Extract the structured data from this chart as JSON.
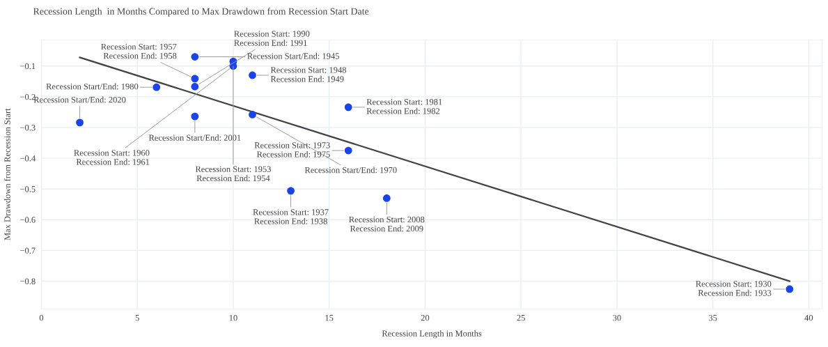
{
  "chart_data": {
    "type": "scatter",
    "title": "Recession Length  in Months Compared to Max Drawdown from Recession Start Date",
    "xlabel": "Recession Length in Months",
    "ylabel": "Max Drawdown from Recession Start",
    "xlim": [
      0,
      40.7
    ],
    "ylim": [
      -0.89,
      -0.015
    ],
    "xticks": [
      0,
      5,
      10,
      15,
      20,
      25,
      30,
      35,
      40
    ],
    "yticks": [
      {
        "value": -0.8,
        "label": "−0.8"
      },
      {
        "value": -0.7,
        "label": "−0.7"
      },
      {
        "value": -0.6,
        "label": "−0.6"
      },
      {
        "value": -0.5,
        "label": "−0.5"
      },
      {
        "value": -0.4,
        "label": "−0.4"
      },
      {
        "value": -0.3,
        "label": "−0.3"
      },
      {
        "value": -0.2,
        "label": "−0.2"
      },
      {
        "value": -0.1,
        "label": "−0.1"
      }
    ],
    "grid": true,
    "legend": false,
    "series": [
      {
        "type": "scatter",
        "color": "#1a44e8",
        "marker": "circle",
        "x": [
          2,
          6,
          8,
          8,
          8,
          8,
          10,
          10,
          11,
          11,
          16,
          16,
          13,
          18,
          39
        ],
        "values": [
          -0.284,
          -0.169,
          -0.264,
          -0.167,
          -0.141,
          -0.07,
          -0.085,
          -0.1,
          -0.13,
          -0.258,
          -0.234,
          -0.375,
          -0.506,
          -0.53,
          -0.826
        ]
      },
      {
        "type": "line",
        "color": "#444444",
        "line_style": "solid",
        "marker": "none",
        "x": [
          2,
          39
        ],
        "values": [
          -0.072,
          -0.8
        ]
      }
    ],
    "annotations": [
      {
        "text": "Recession Start/End: 2020",
        "x": 2,
        "y": -0.284
      },
      {
        "text": "Recession Start/End: 1980",
        "x": 6,
        "y": -0.169
      },
      {
        "text": "Recession Start/End: 2001",
        "x": 8,
        "y": -0.264
      },
      {
        "text": "Recession Start: 1990\nRecession End: 1991",
        "x": 8,
        "y": -0.167
      },
      {
        "text": "Recession Start: 1957\nRecession End: 1958",
        "x": 8,
        "y": -0.141
      },
      {
        "text": "Recession Start/End: 1945",
        "x": 8,
        "y": -0.07
      },
      {
        "text": "Recession Start: 1953\nRecession End: 1954",
        "x": 10,
        "y": -0.085
      },
      {
        "text": "Recession Start: 1960\nRecession End: 1961",
        "x": 10,
        "y": -0.1
      },
      {
        "text": "Recession Start: 1948\nRecession End: 1949",
        "x": 11,
        "y": -0.13
      },
      {
        "text": "Recession Start/End: 1970",
        "x": 11,
        "y": -0.258
      },
      {
        "text": "Recession Start: 1981\nRecession End: 1982",
        "x": 16,
        "y": -0.234
      },
      {
        "text": "Recession Start: 1973\nRecession End: 1975",
        "x": 16,
        "y": -0.375
      },
      {
        "text": "Recession Start: 1937\nRecession End: 1938",
        "x": 13,
        "y": -0.506
      },
      {
        "text": "Recession Start: 2008\nRecession End: 2009",
        "x": 18,
        "y": -0.53
      },
      {
        "text": "Recession Start: 1930\nRecession End: 1933",
        "x": 39,
        "y": -0.826
      }
    ]
  }
}
